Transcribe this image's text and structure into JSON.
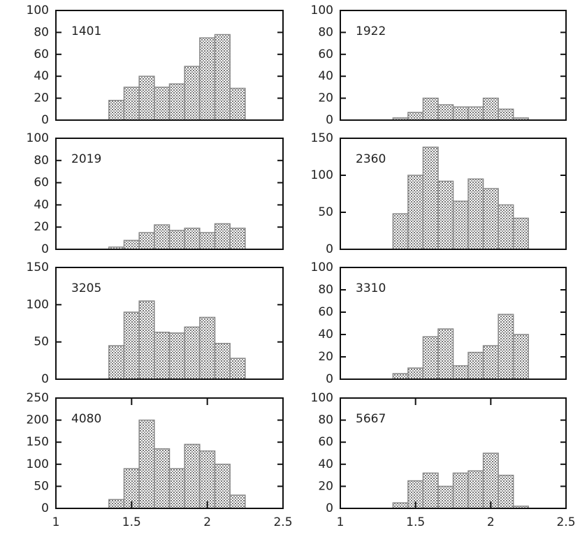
{
  "chart_data": [
    {
      "type": "histogram",
      "annotation": "1401",
      "bins": [
        1.35,
        1.45,
        1.55,
        1.65,
        1.75,
        1.85,
        1.95,
        2.05,
        2.15,
        2.25
      ],
      "values": [
        18,
        30,
        40,
        30,
        33,
        49,
        75,
        78,
        29
      ],
      "color": "#888888",
      "xlim": [
        1,
        2.5
      ],
      "ylim": [
        0,
        100
      ],
      "yticks": [
        0,
        20,
        40,
        60,
        80,
        100
      ]
    },
    {
      "type": "histogram",
      "annotation": "1922",
      "bins": [
        1.35,
        1.45,
        1.55,
        1.65,
        1.75,
        1.85,
        1.95,
        2.05,
        2.15,
        2.25
      ],
      "values": [
        2,
        7,
        20,
        14,
        12,
        12,
        20,
        10,
        2
      ],
      "color": "#888888",
      "xlim": [
        1,
        2.5
      ],
      "ylim": [
        0,
        100
      ],
      "yticks": [
        0,
        20,
        40,
        60,
        80,
        100
      ]
    },
    {
      "type": "histogram",
      "annotation": "2019",
      "bins": [
        1.35,
        1.45,
        1.55,
        1.65,
        1.75,
        1.85,
        1.95,
        2.05,
        2.15,
        2.25
      ],
      "values": [
        2,
        8,
        15,
        22,
        17,
        19,
        15,
        23,
        19
      ],
      "color": "#888888",
      "xlim": [
        1,
        2.5
      ],
      "ylim": [
        0,
        100
      ],
      "yticks": [
        0,
        20,
        40,
        60,
        80,
        100
      ]
    },
    {
      "type": "histogram",
      "annotation": "2360",
      "bins": [
        1.35,
        1.45,
        1.55,
        1.65,
        1.75,
        1.85,
        1.95,
        2.05,
        2.15,
        2.25
      ],
      "values": [
        48,
        100,
        138,
        92,
        65,
        95,
        82,
        60,
        42
      ],
      "color": "#888888",
      "xlim": [
        1,
        2.5
      ],
      "ylim": [
        0,
        150
      ],
      "yticks": [
        0,
        50,
        100,
        150
      ]
    },
    {
      "type": "histogram",
      "annotation": "3205",
      "bins": [
        1.35,
        1.45,
        1.55,
        1.65,
        1.75,
        1.85,
        1.95,
        2.05,
        2.15,
        2.25
      ],
      "values": [
        45,
        90,
        105,
        63,
        62,
        70,
        83,
        48,
        28
      ],
      "color": "#888888",
      "xlim": [
        1,
        2.5
      ],
      "ylim": [
        0,
        150
      ],
      "yticks": [
        0,
        50,
        100,
        150
      ]
    },
    {
      "type": "histogram",
      "annotation": "3310",
      "bins": [
        1.35,
        1.45,
        1.55,
        1.65,
        1.75,
        1.85,
        1.95,
        2.05,
        2.15,
        2.25
      ],
      "values": [
        5,
        10,
        38,
        45,
        12,
        24,
        30,
        58,
        40
      ],
      "color": "#888888",
      "xlim": [
        1,
        2.5
      ],
      "ylim": [
        0,
        100
      ],
      "yticks": [
        0,
        20,
        40,
        60,
        80,
        100
      ]
    },
    {
      "type": "histogram",
      "annotation": "4080",
      "bins": [
        1.35,
        1.45,
        1.55,
        1.65,
        1.75,
        1.85,
        1.95,
        2.05,
        2.15,
        2.25
      ],
      "values": [
        20,
        90,
        200,
        135,
        90,
        145,
        130,
        100,
        30
      ],
      "color": "#888888",
      "xlim": [
        1,
        2.5
      ],
      "ylim": [
        0,
        250
      ],
      "yticks": [
        0,
        50,
        100,
        150,
        200,
        250
      ],
      "xticks": [
        1,
        1.5,
        2,
        2.5
      ]
    },
    {
      "type": "histogram",
      "annotation": "5667",
      "bins": [
        1.35,
        1.45,
        1.55,
        1.65,
        1.75,
        1.85,
        1.95,
        2.05,
        2.15,
        2.25
      ],
      "values": [
        5,
        25,
        32,
        20,
        32,
        34,
        50,
        30,
        2
      ],
      "color": "#888888",
      "xlim": [
        1,
        2.5
      ],
      "ylim": [
        0,
        100
      ],
      "yticks": [
        0,
        20,
        40,
        60,
        80,
        100
      ],
      "xticks": [
        1,
        1.5,
        2,
        2.5
      ]
    }
  ]
}
